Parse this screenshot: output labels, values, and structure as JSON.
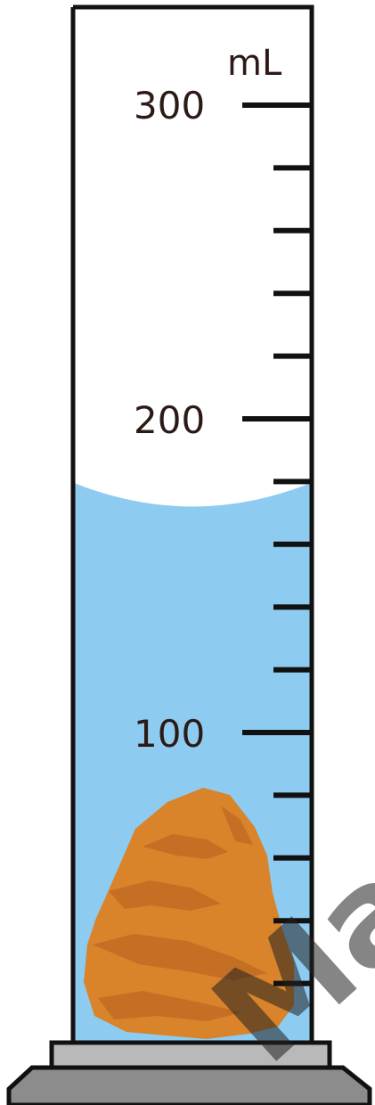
{
  "cylinder": {
    "unit": "mL",
    "labels": [
      {
        "value": 300,
        "text": "300"
      },
      {
        "value": 200,
        "text": "200"
      },
      {
        "value": 100,
        "text": "100"
      }
    ],
    "tick_values": [
      300,
      280,
      260,
      240,
      220,
      200,
      180,
      160,
      140,
      120,
      100,
      80,
      60,
      40,
      20
    ],
    "liquid_level_ml": 178,
    "colors": {
      "liquid": "#8ecbf0",
      "rock": "#d9832a",
      "rock_shade": "#c46f24",
      "glass_outline": "#111111",
      "base": "#b9b9b9"
    }
  },
  "object": {
    "icon": "rock-icon"
  },
  "watermark": {
    "text": "Ma"
  }
}
